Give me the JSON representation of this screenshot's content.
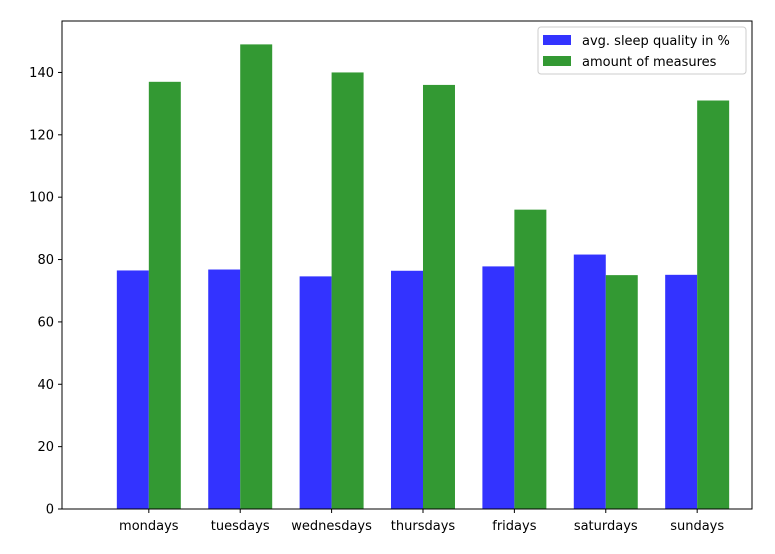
{
  "chart_data": {
    "type": "bar",
    "title": "",
    "xlabel": "",
    "ylabel": "",
    "categories": [
      "mondays",
      "tuesdays",
      "wednesdays",
      "thursdays",
      "fridays",
      "saturdays",
      "sundays"
    ],
    "series": [
      {
        "name": "avg. sleep quality in %",
        "color": "#3333ff",
        "values": [
          76.5,
          76.8,
          74.6,
          76.4,
          77.8,
          81.6,
          75.1
        ]
      },
      {
        "name": "amount of measures",
        "color": "#339933",
        "values": [
          137,
          149,
          140,
          136,
          96,
          75,
          131
        ]
      }
    ],
    "ylim": [
      0,
      156.5
    ],
    "yticks": [
      0,
      20,
      40,
      60,
      80,
      100,
      120,
      140
    ],
    "grid": false,
    "legend_position": "top-right"
  }
}
